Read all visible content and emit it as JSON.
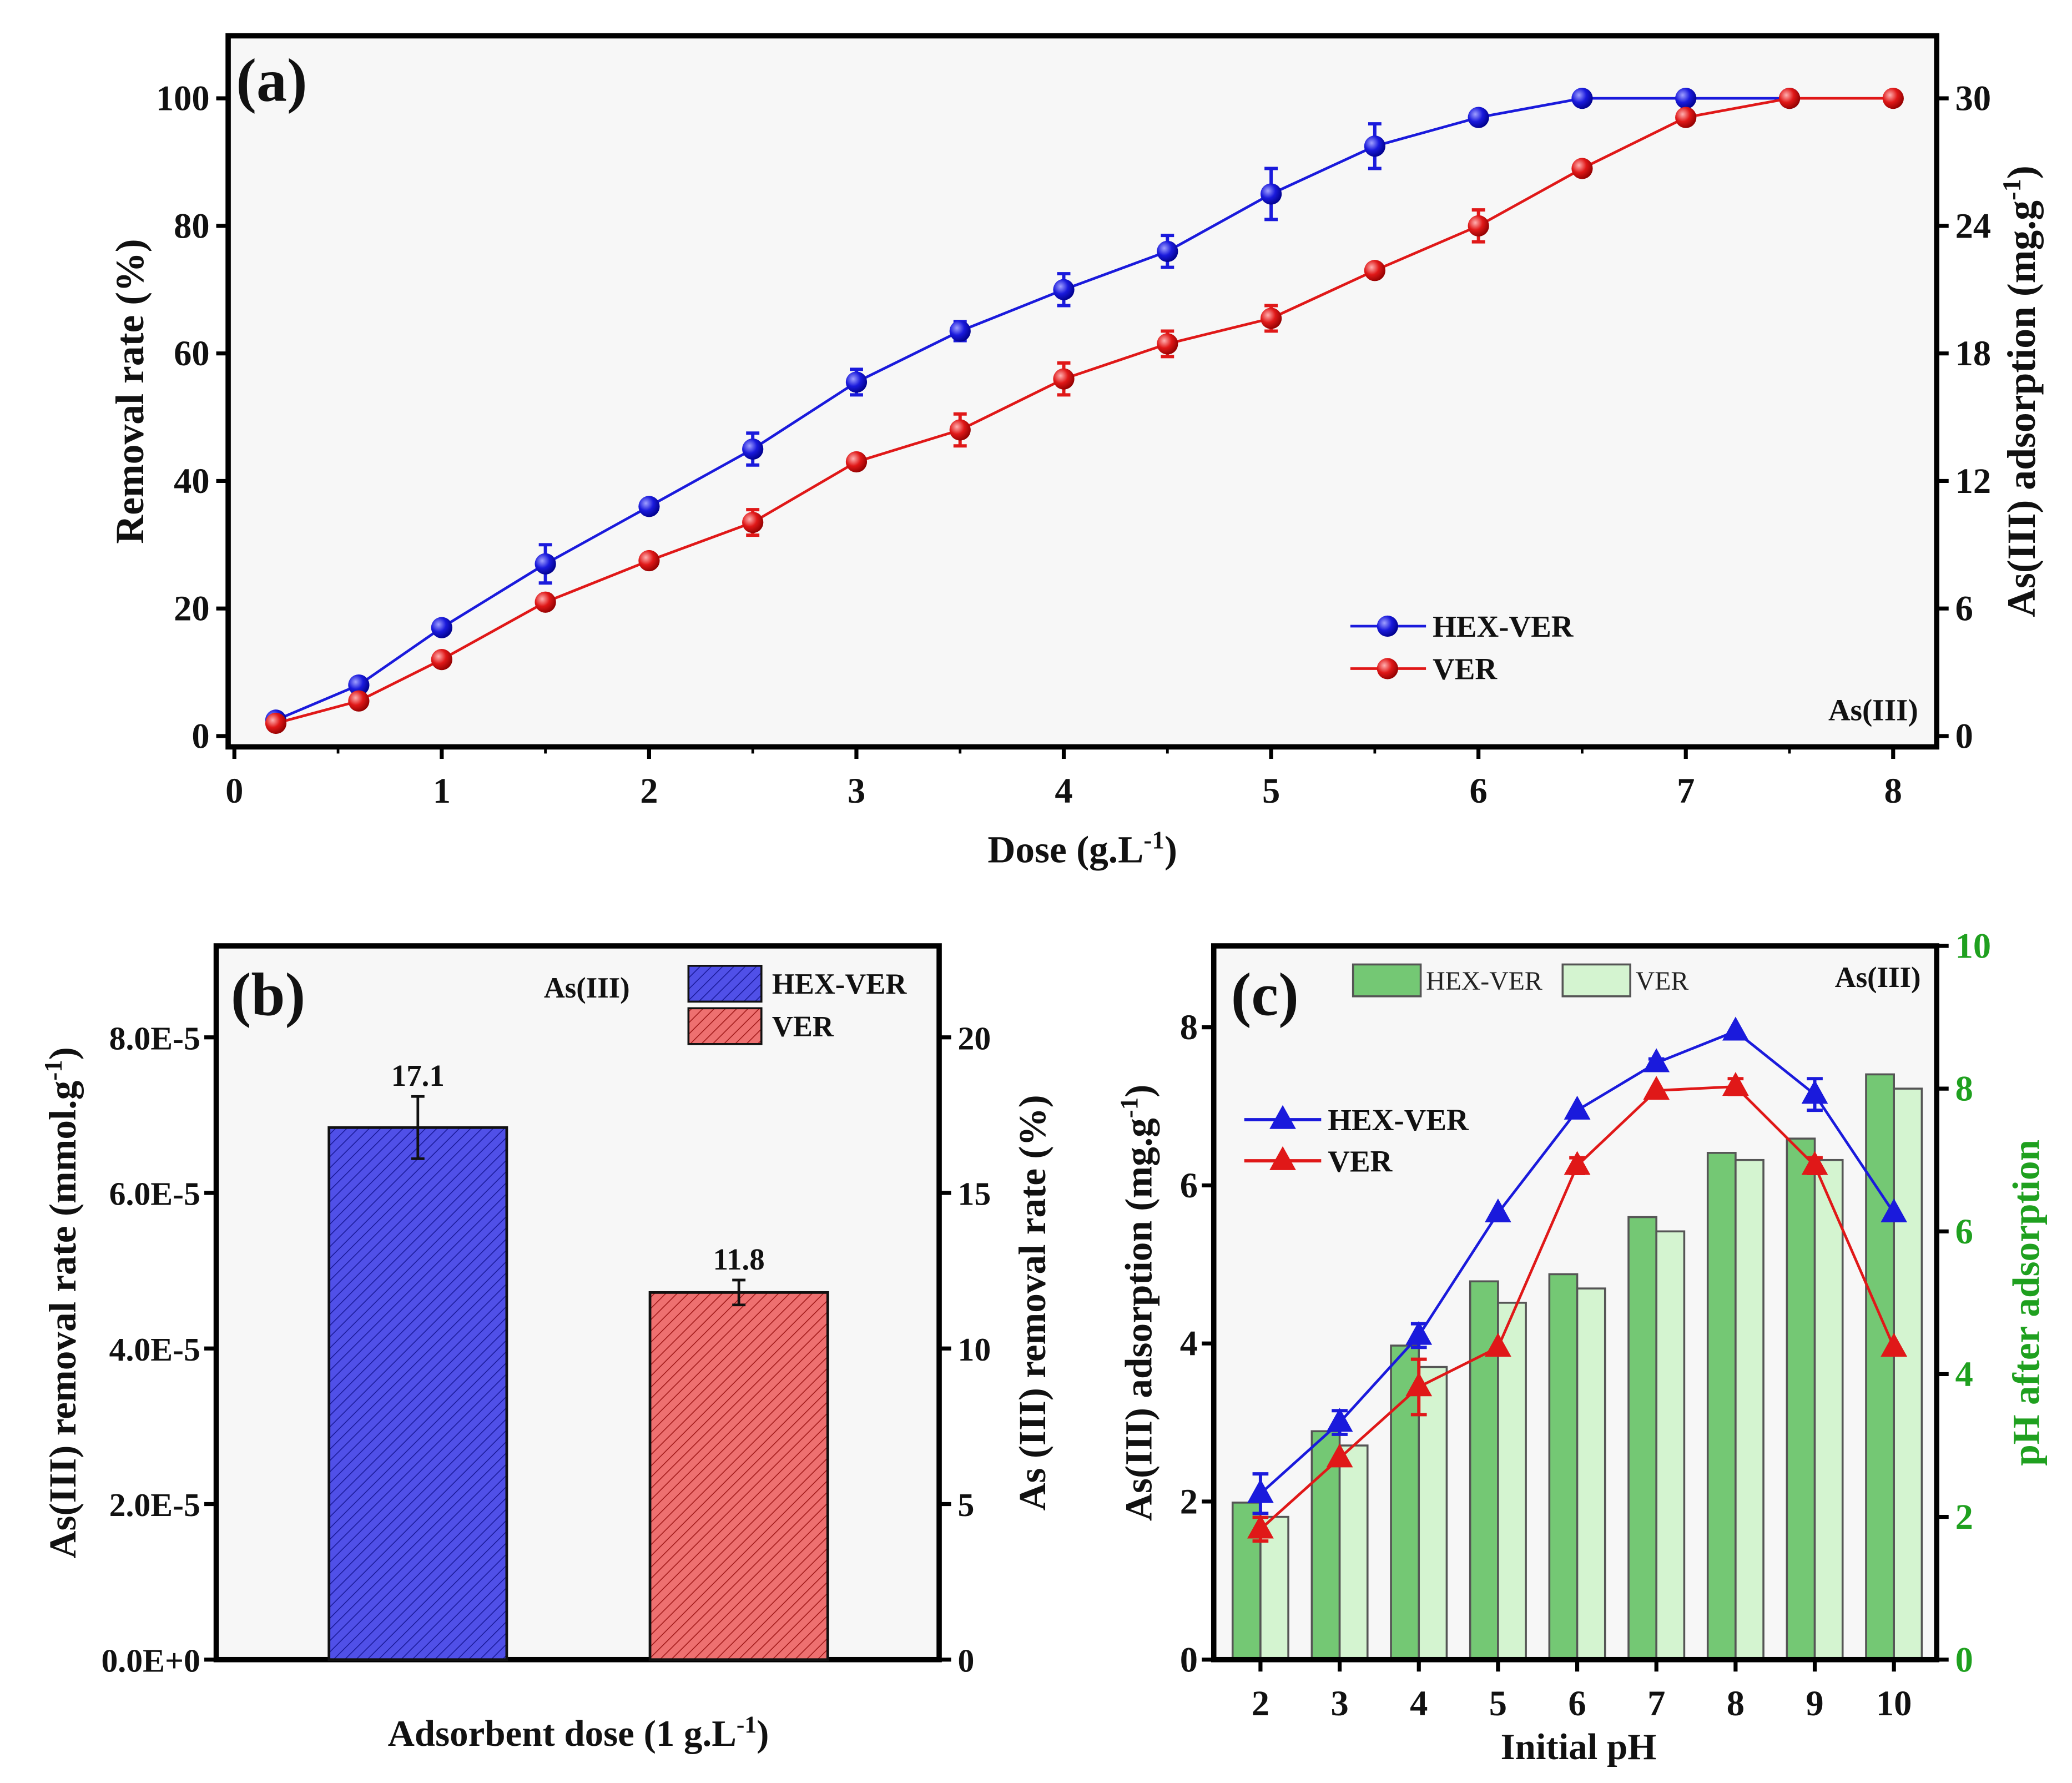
{
  "chart_data": [
    {
      "type": "line",
      "panel_label": "(a)",
      "annotation": "As(III)",
      "xlabel": [
        "Dose (g.L",
        "-1",
        ")"
      ],
      "ylabel": "Removal rate (%)",
      "ylabel_right": [
        "As(III) adsorption (mg.g",
        "-1",
        ")"
      ],
      "xlim": [
        -0.03,
        8.21
      ],
      "ylim": [
        -1.7,
        109.8
      ],
      "xticks": [
        "0",
        "1",
        "2",
        "3",
        "4",
        "5",
        "6",
        "7",
        "8"
      ],
      "yticks": [
        "0",
        "20",
        "40",
        "60",
        "80",
        "100"
      ],
      "yticks_right": [
        "0",
        "6",
        "12",
        "18",
        "24",
        "30"
      ],
      "legend_position": "lower-right",
      "series": [
        {
          "name": "HEX-VER",
          "color": "#1a1adc",
          "x": [
            0.2,
            0.6,
            1,
            1.5,
            2,
            2.5,
            3,
            3.5,
            4,
            4.5,
            5,
            5.5,
            6,
            6.5,
            7,
            7.5
          ],
          "y": [
            2.5,
            8,
            17,
            27,
            36,
            45,
            55.5,
            63.5,
            70,
            76,
            85,
            92.5,
            97,
            100,
            100,
            100
          ],
          "err": [
            1,
            1,
            0.5,
            3,
            1,
            2.5,
            2,
            1.5,
            2.5,
            2.5,
            4,
            3.5,
            1,
            0,
            0,
            0
          ]
        },
        {
          "name": "VER",
          "color": "#e01818",
          "x": [
            0.2,
            0.6,
            1,
            1.5,
            2,
            2.5,
            3,
            3.5,
            4,
            4.5,
            5,
            5.5,
            6,
            6.5,
            7,
            7.5,
            8
          ],
          "y": [
            2,
            5.5,
            12,
            21,
            27.5,
            33.5,
            43,
            48,
            56,
            61.5,
            65.5,
            73,
            80,
            89,
            97,
            100,
            100
          ],
          "err": [
            1,
            0.5,
            0.5,
            1,
            0.5,
            2,
            0.5,
            2.5,
            2.5,
            2,
            2,
            1,
            2.5,
            0.5,
            0.5,
            0,
            0
          ]
        }
      ]
    },
    {
      "type": "bar",
      "panel_label": "(b)",
      "annotation": "As(III)",
      "xlabel": [
        "Adsorbent dose (1 g.L",
        "-1",
        ")"
      ],
      "ylabel": [
        "As(III) removal rate (mmol.g",
        "-1",
        ")"
      ],
      "ylabel_right": "As (III) removal rate (%)",
      "categories": [
        "HEX-VER",
        "VER"
      ],
      "values": [
        17.1,
        11.8
      ],
      "data_labels": [
        "17.1",
        "11.8"
      ],
      "err": [
        1.0,
        0.4
      ],
      "colors": [
        "#3a3ad8",
        "#e04848"
      ],
      "ylim_right": [
        0,
        22.94
      ],
      "yticks": [
        "0.0E+0",
        "2.0E-5",
        "4.0E-5",
        "6.0E-5",
        "8.0E-5"
      ],
      "yticks_right": [
        "0",
        "5",
        "10",
        "15",
        "20"
      ],
      "legend_position": "top-right"
    },
    {
      "type": "bar+line",
      "panel_label": "(c)",
      "annotation": "As(III)",
      "xlabel": "Initial pH",
      "ylabel": [
        "As(III) adsorption (mg.g",
        "-1",
        ")"
      ],
      "ylabel_right": "pH after adsorption",
      "right_axis_color": "#1fa01f",
      "categories": [
        "2",
        "3",
        "4",
        "5",
        "6",
        "7",
        "8",
        "9",
        "10"
      ],
      "xlim": [
        1.41,
        10.54
      ],
      "ylim": [
        0,
        9.03
      ],
      "ylim_right": [
        0,
        10
      ],
      "yticks": [
        "0",
        "2",
        "4",
        "6",
        "8"
      ],
      "yticks_right": [
        "0",
        "2",
        "4",
        "6",
        "8",
        "10"
      ],
      "bar_series": [
        {
          "name": "HEX-VER",
          "color": "#74c874",
          "values": [
            2.2,
            3.2,
            4.4,
            5.3,
            5.4,
            6.2,
            7.1,
            7.3,
            8.2
          ]
        },
        {
          "name": "VER",
          "color": "#d4f4d0",
          "values": [
            2.0,
            3.0,
            4.1,
            5.0,
            5.2,
            6.0,
            7.0,
            7.0,
            8.0
          ]
        }
      ],
      "line_series": [
        {
          "name": "HEX-VER",
          "color": "#1a1adc",
          "values": [
            2.1,
            3.0,
            4.1,
            5.65,
            6.95,
            7.55,
            7.95,
            7.15,
            5.65
          ],
          "err": [
            0.25,
            0.15,
            0.15,
            0,
            0,
            0.05,
            0,
            0.2,
            0
          ]
        },
        {
          "name": "VER",
          "color": "#e01818",
          "values": [
            1.65,
            2.55,
            3.45,
            3.95,
            6.25,
            7.2,
            7.25,
            6.25,
            3.95
          ],
          "err": [
            0.15,
            0,
            0.35,
            0,
            0.1,
            0,
            0.1,
            0.1,
            0
          ]
        }
      ]
    }
  ]
}
